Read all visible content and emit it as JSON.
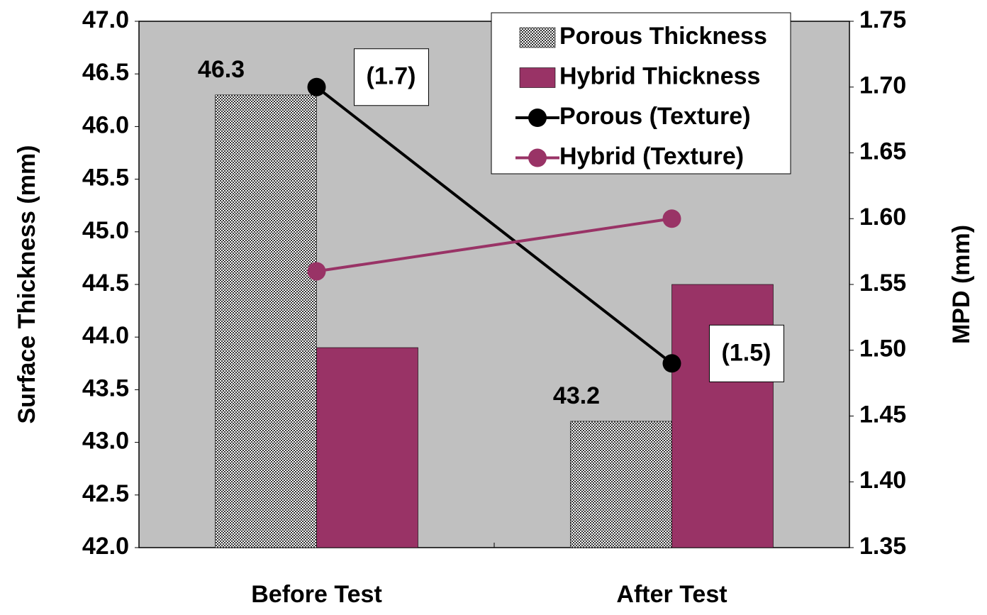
{
  "chart_data": {
    "type": "bar",
    "categories": [
      "Before Test",
      "After Test"
    ],
    "ylabel": "Surface Thickness (mm)",
    "y2label": "MPD (mm)",
    "ylim": [
      42.0,
      47.0
    ],
    "yticks": [
      {
        "value": 42.0,
        "label": "42.0"
      },
      42.5,
      {
        "value": 43.0,
        "label": "43.0"
      },
      43.5,
      {
        "value": 44.0,
        "label": "44.0"
      },
      44.5,
      {
        "value": 45.0,
        "label": "45.0"
      },
      45.5,
      {
        "value": 46.0,
        "label": "46.0"
      },
      46.5,
      {
        "value": 47.0,
        "label": "47.0"
      }
    ],
    "y2lim": [
      1.35,
      1.75
    ],
    "y2ticks": [
      1.35,
      {
        "value": 1.4,
        "label": "1.40"
      },
      1.45,
      {
        "value": 1.5,
        "label": "1.50"
      },
      1.55,
      {
        "value": 1.6,
        "label": "1.60"
      },
      1.65,
      {
        "value": 1.7,
        "label": "1.70"
      },
      1.75
    ],
    "legend": "upper right",
    "grid": false,
    "series": [
      {
        "name": "Porous Thickness",
        "type": "bar",
        "color": "pattern",
        "values": [
          46.3,
          43.2
        ],
        "show_labels": true
      },
      {
        "name": "Hybrid Thickness",
        "type": "bar",
        "color": "#993366",
        "values": [
          43.9,
          44.5
        ]
      },
      {
        "name": "Porous (Texture)",
        "type": "line",
        "axis": "y2",
        "color": "#000000",
        "values": [
          1.7,
          1.49
        ],
        "value_labels": [
          "(1.7)",
          "(1.5)"
        ]
      },
      {
        "name": "Hybrid (Texture)",
        "type": "line",
        "axis": "y2",
        "color": "#993366",
        "values": [
          1.56,
          1.6
        ]
      }
    ]
  }
}
